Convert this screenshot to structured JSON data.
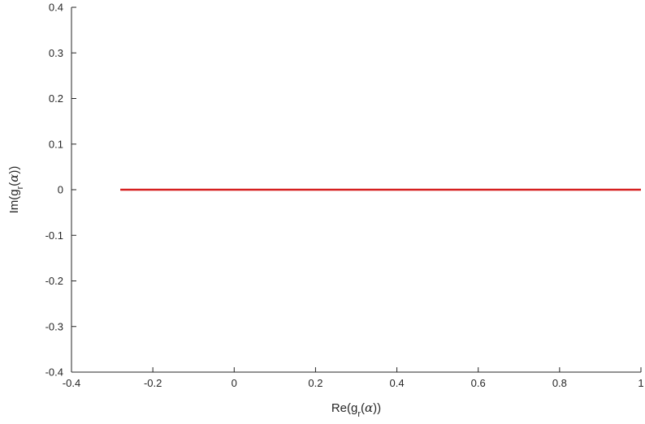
{
  "chart_data": {
    "type": "line",
    "title": "",
    "xlabel": {
      "prefix": "Re(g",
      "sub": "r",
      "middle": "(",
      "alpha": "α",
      "suffix": "))"
    },
    "ylabel": {
      "prefix": "Im(g",
      "sub": "r",
      "middle": "(",
      "alpha": "α",
      "suffix": "))"
    },
    "xlim": [
      -0.4,
      1
    ],
    "ylim": [
      -0.4,
      0.4
    ],
    "xticks": [
      -0.4,
      -0.2,
      0,
      0.2,
      0.4,
      0.6,
      0.8,
      1
    ],
    "xtick_labels": [
      "-0.4",
      "-0.2",
      "0",
      "0.2",
      "0.4",
      "0.6",
      "0.8",
      "1"
    ],
    "yticks": [
      -0.4,
      -0.3,
      -0.2,
      -0.1,
      0,
      0.1,
      0.2,
      0.3,
      0.4
    ],
    "ytick_labels": [
      "-0.4",
      "-0.3",
      "-0.2",
      "-0.1",
      "0",
      "0.1",
      "0.2",
      "0.3",
      "0.4"
    ],
    "grid": false,
    "series": [
      {
        "color": "#d62020",
        "x": [
          -0.28,
          1
        ],
        "y": [
          0,
          0
        ]
      }
    ]
  }
}
